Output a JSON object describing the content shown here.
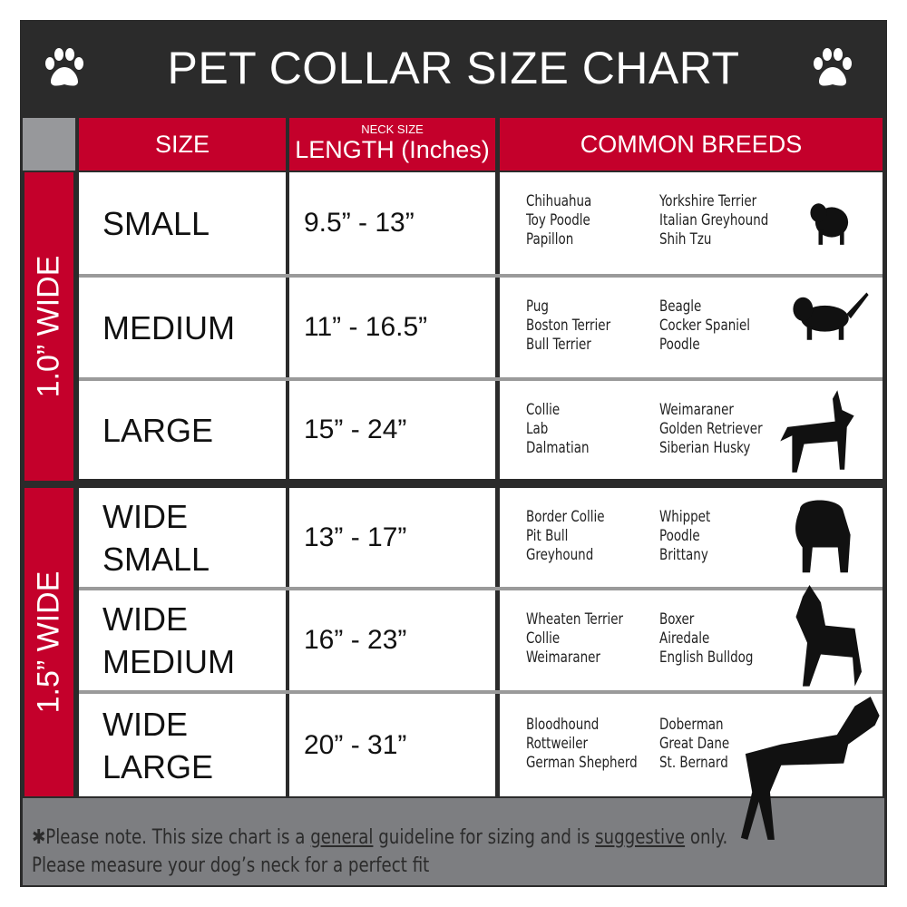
{
  "title": "PET COLLAR SIZE CHART",
  "header": {
    "size": "SIZE",
    "length_small": "NECK SIZE",
    "length": "LENGTH (Inches)",
    "breeds": "COMMON BREEDS"
  },
  "groups": [
    "1.0” WIDE",
    "1.5” WIDE"
  ],
  "rows": [
    {
      "size": [
        "SMALL"
      ],
      "length": "9.5” - 13”",
      "breeds_a": [
        "Chihuahua",
        "Toy Poodle",
        "Papillon"
      ],
      "breeds_b": [
        "Yorkshire Terrier",
        "Italian Greyhound",
        "Shih Tzu"
      ]
    },
    {
      "size": [
        "MEDIUM"
      ],
      "length": "11” - 16.5”",
      "breeds_a": [
        "Pug",
        "Boston Terrier",
        "Bull Terrier"
      ],
      "breeds_b": [
        "Beagle",
        "Cocker Spaniel",
        "Poodle"
      ]
    },
    {
      "size": [
        "LARGE"
      ],
      "length": "15” - 24”",
      "breeds_a": [
        "Collie",
        "Lab",
        "Dalmatian"
      ],
      "breeds_b": [
        "Weimaraner",
        "Golden Retriever",
        "Siberian Husky"
      ]
    },
    {
      "size": [
        "WIDE",
        "SMALL"
      ],
      "length": "13” - 17”",
      "breeds_a": [
        "Border Collie",
        "Pit Bull",
        "Greyhound"
      ],
      "breeds_b": [
        "Whippet",
        "Poodle",
        "Brittany"
      ]
    },
    {
      "size": [
        "WIDE",
        "MEDIUM"
      ],
      "length": "16” - 23”",
      "breeds_a": [
        "Wheaten Terrier",
        "Collie",
        "Weimaraner"
      ],
      "breeds_b": [
        "Boxer",
        "Airedale",
        "English Bulldog"
      ]
    },
    {
      "size": [
        "WIDE",
        "LARGE"
      ],
      "length": "20” - 31”",
      "breeds_a": [
        "Bloodhound",
        "Rottweiler",
        "German Shepherd"
      ],
      "breeds_b": [
        "Doberman",
        "Great Dane",
        "St. Bernard"
      ]
    }
  ],
  "footer": {
    "star": "✱",
    "p1": "Please note. This size chart is a",
    "u1": "general",
    "p2": "guideline for sizing and is",
    "u2": "suggestive",
    "p3": "only.",
    "line2": "Please measure your dog’s neck for a perfect fit"
  },
  "colors": {
    "accent_red": "#c4002b",
    "title_bg": "#2b2b2b",
    "footer_bg": "#7d7e81"
  },
  "icons": [
    "paw-icon",
    "dog-silhouette-icon"
  ]
}
